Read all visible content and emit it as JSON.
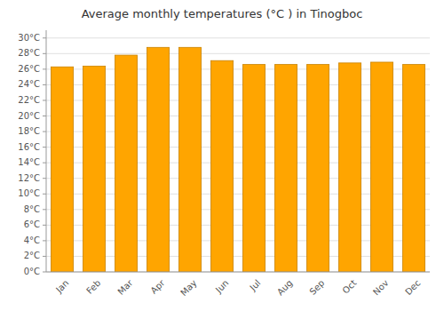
{
  "chart_data": {
    "type": "bar",
    "title": "Average monthly temperatures (°C ) in Tinogboc",
    "categories": [
      "Jan",
      "Feb",
      "Mar",
      "Apr",
      "May",
      "Jun",
      "Jul",
      "Aug",
      "Sep",
      "Oct",
      "Nov",
      "Dec"
    ],
    "values": [
      26.3,
      26.4,
      27.8,
      28.8,
      28.8,
      27.1,
      26.6,
      26.6,
      26.6,
      26.8,
      26.9,
      26.6
    ],
    "color": "#FFA500",
    "ylim": [
      0,
      31
    ],
    "yticks": [
      {
        "value": 0,
        "label": "0°C"
      },
      {
        "value": 2,
        "label": "2°C"
      },
      {
        "value": 4,
        "label": "4°C"
      },
      {
        "value": 6,
        "label": "6°C"
      },
      {
        "value": 8,
        "label": "8°C"
      },
      {
        "value": 10,
        "label": "10°C"
      },
      {
        "value": 12,
        "label": "12°C"
      },
      {
        "value": 14,
        "label": "14°C"
      },
      {
        "value": 16,
        "label": "16°C"
      },
      {
        "value": 18,
        "label": "18°C"
      },
      {
        "value": 20,
        "label": "20°C"
      },
      {
        "value": 22,
        "label": "22°C"
      },
      {
        "value": 24,
        "label": "24°C"
      },
      {
        "value": 26,
        "label": "26°C"
      },
      {
        "value": 28,
        "label": "28°C"
      },
      {
        "value": 30,
        "label": "30°C"
      }
    ],
    "grid": true
  }
}
